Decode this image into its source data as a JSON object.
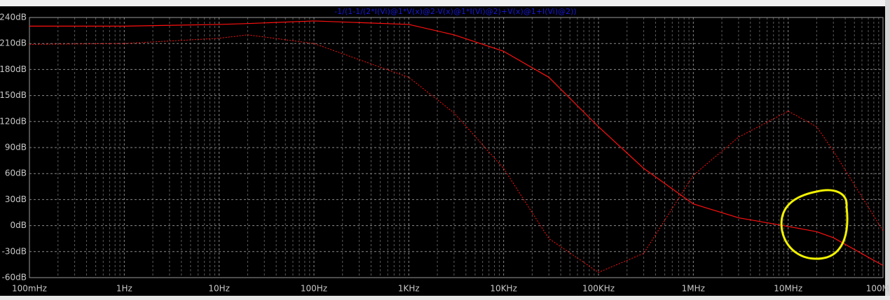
{
  "chart_data": {
    "type": "line",
    "title": "-1/(1-1/(2*I(Vi)@1*V(x)@2-V(x)@1*I(Vi)@2)+V(x)@1+I(Vi)@2))",
    "x": [
      0.1,
      1,
      10,
      20,
      100,
      1000,
      3000,
      10000,
      30000,
      100000,
      300000,
      1000000,
      3000000,
      10000000,
      20000000,
      30000000,
      100000000
    ],
    "series": [
      {
        "color": "#ff1010",
        "dash": "solid",
        "values": [
          230,
          230,
          232,
          233,
          236,
          232,
          220,
          201,
          171,
          114,
          66,
          25,
          9,
          -1,
          -7,
          -14,
          -46
        ]
      },
      {
        "color": "#ff1010",
        "dash": "dotted",
        "values": [
          209,
          210,
          216,
          220,
          210,
          171,
          130,
          66,
          -15,
          -54,
          -32,
          58,
          102,
          132,
          114,
          86,
          -6
        ]
      }
    ],
    "xscale": "log",
    "xlim": [
      0.1,
      100000000
    ],
    "xticks": [
      {
        "value": 0.1,
        "label": "100mHz"
      },
      {
        "value": 1,
        "label": "1Hz"
      },
      {
        "value": 10,
        "label": "10Hz"
      },
      {
        "value": 100,
        "label": "100Hz"
      },
      {
        "value": 1000,
        "label": "1KHz"
      },
      {
        "value": 10000,
        "label": "10KHz"
      },
      {
        "value": 100000,
        "label": "100KHz"
      },
      {
        "value": 1000000,
        "label": "1MHz"
      },
      {
        "value": 10000000,
        "label": "10MHz"
      },
      {
        "value": 100000000,
        "label": "100MHz"
      }
    ],
    "ylim": [
      -60,
      240
    ],
    "yticks": [
      {
        "value": 240,
        "label": "240dB"
      },
      {
        "value": 210,
        "label": "210dB"
      },
      {
        "value": 180,
        "label": "180dB"
      },
      {
        "value": 150,
        "label": "150dB"
      },
      {
        "value": 120,
        "label": "120dB"
      },
      {
        "value": 90,
        "label": "90dB"
      },
      {
        "value": 60,
        "label": "60dB"
      },
      {
        "value": 30,
        "label": "30dB"
      },
      {
        "value": 0,
        "label": "0dB"
      },
      {
        "value": -30,
        "label": "-30dB"
      },
      {
        "value": -60,
        "label": "-60dB"
      }
    ],
    "grid": true
  }
}
